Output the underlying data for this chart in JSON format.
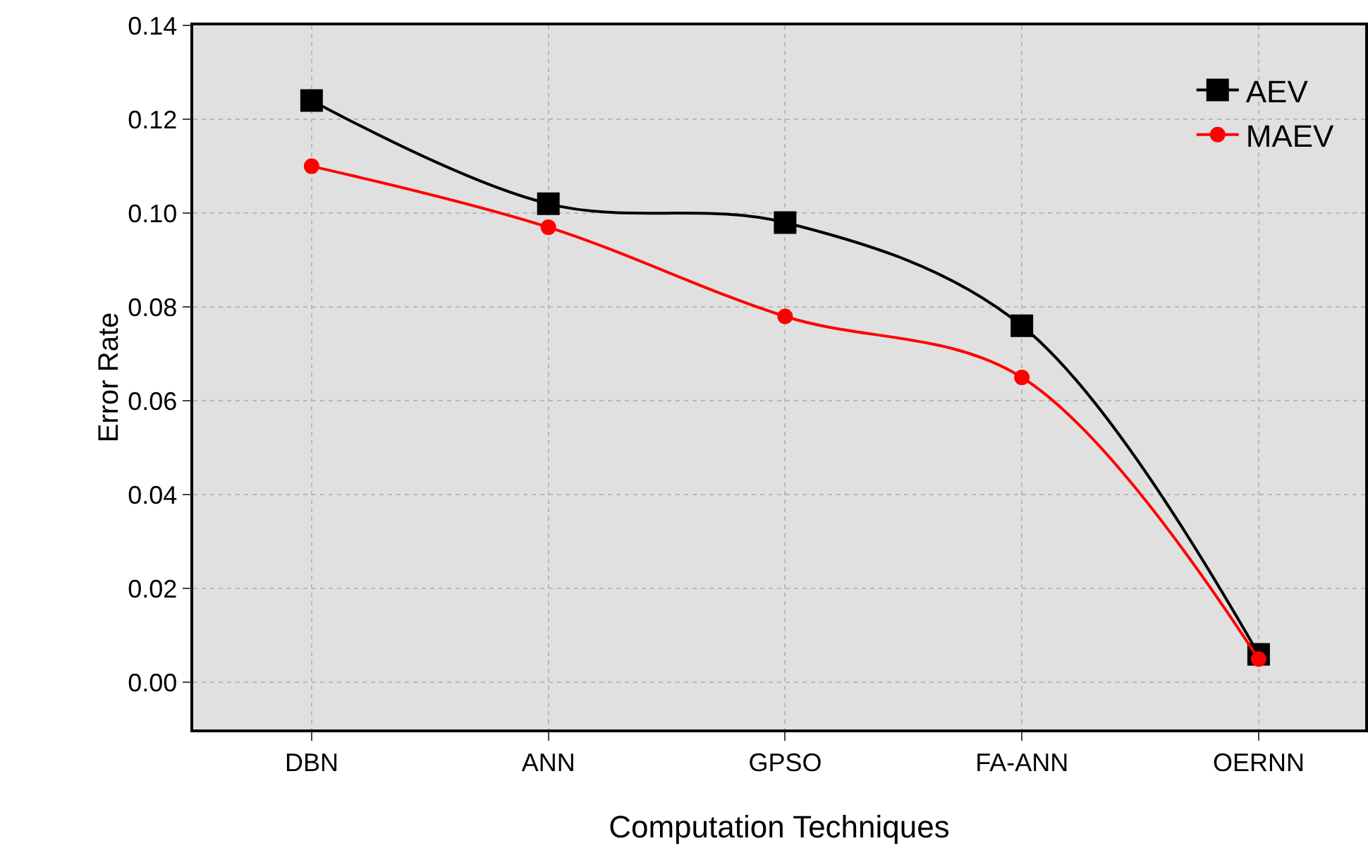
{
  "chart_data": {
    "type": "line",
    "xlabel": "Computation Techniques",
    "ylabel": "Error Rate",
    "categories": [
      "DBN",
      "ANN",
      "GPSO",
      "FA-ANN",
      "OERNN"
    ],
    "series": [
      {
        "name": "AEV",
        "color": "#000000",
        "marker": "square",
        "values": [
          0.124,
          0.102,
          0.098,
          0.076,
          0.006
        ]
      },
      {
        "name": "MAEV",
        "color": "#ff0000",
        "marker": "circle",
        "values": [
          0.11,
          0.097,
          0.078,
          0.065,
          0.005
        ]
      }
    ],
    "ylim": [
      -0.01,
      0.14
    ],
    "yticks": [
      {
        "value": 0,
        "label": "0.00"
      },
      {
        "value": 0.02,
        "label": "0.02"
      },
      {
        "value": 0.04,
        "label": "0.04"
      },
      {
        "value": 0.06,
        "label": "0.06"
      },
      {
        "value": 0.08,
        "label": "0.08"
      },
      {
        "value": 0.1,
        "label": "0.10"
      },
      {
        "value": 0.12,
        "label": "0.12"
      },
      {
        "value": 0.14,
        "label": "0.14"
      }
    ],
    "grid": true,
    "legend": "top right"
  }
}
